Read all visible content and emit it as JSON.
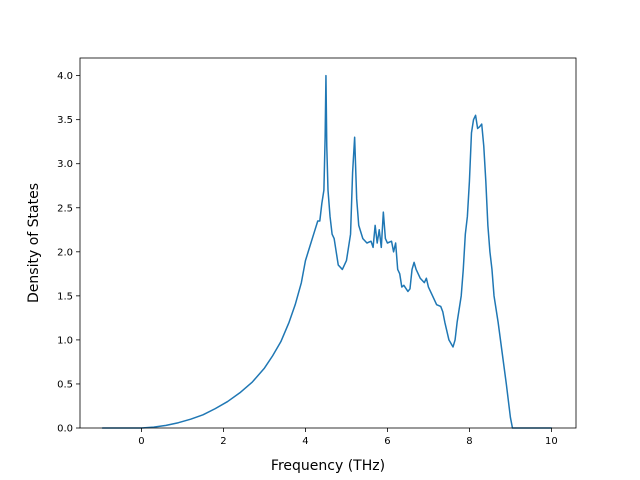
{
  "chart_data": {
    "type": "line",
    "title": "",
    "xlabel": "Frequency (THz)",
    "ylabel": "Density of States",
    "xlim": [
      -1.5,
      10.6
    ],
    "ylim": [
      0.0,
      4.2
    ],
    "x_ticks": [
      0,
      2,
      4,
      6,
      8,
      10
    ],
    "x_tick_labels": [
      "0",
      "2",
      "4",
      "6",
      "8",
      "10"
    ],
    "y_ticks": [
      0.0,
      0.5,
      1.0,
      1.5,
      2.0,
      2.5,
      3.0,
      3.5,
      4.0
    ],
    "y_tick_labels": [
      "0.0",
      "0.5",
      "1.0",
      "1.5",
      "2.0",
      "2.5",
      "3.0",
      "3.5",
      "4.0"
    ],
    "grid": false,
    "line_color": "#1f77b4",
    "series": [
      {
        "x": [
          -0.95,
          -0.5,
          0.0,
          0.3,
          0.6,
          0.9,
          1.2,
          1.5,
          1.8,
          2.1,
          2.4,
          2.7,
          3.0,
          3.2,
          3.4,
          3.6,
          3.75,
          3.9,
          4.0,
          4.1,
          4.2,
          4.3,
          4.35,
          4.4,
          4.45,
          4.48,
          4.5,
          4.52,
          4.55,
          4.6,
          4.65,
          4.7,
          4.75,
          4.8,
          4.9,
          5.0,
          5.1,
          5.15,
          5.2,
          5.25,
          5.3,
          5.4,
          5.5,
          5.6,
          5.65,
          5.7,
          5.75,
          5.8,
          5.85,
          5.9,
          5.95,
          6.0,
          6.1,
          6.15,
          6.2,
          6.25,
          6.3,
          6.35,
          6.4,
          6.5,
          6.55,
          6.6,
          6.65,
          6.7,
          6.8,
          6.9,
          6.95,
          7.0,
          7.1,
          7.2,
          7.3,
          7.35,
          7.4,
          7.5,
          7.6,
          7.65,
          7.7,
          7.8,
          7.85,
          7.9,
          7.95,
          8.0,
          8.05,
          8.1,
          8.15,
          8.2,
          8.25,
          8.3,
          8.35,
          8.4,
          8.45,
          8.5,
          8.55,
          8.6,
          8.7,
          8.8,
          8.9,
          9.0,
          9.05,
          9.1,
          9.15,
          9.3,
          9.6,
          10.0
        ],
        "values": [
          0.0,
          0.0,
          0.0,
          0.01,
          0.03,
          0.06,
          0.1,
          0.15,
          0.22,
          0.3,
          0.4,
          0.52,
          0.68,
          0.82,
          0.98,
          1.2,
          1.4,
          1.65,
          1.9,
          2.05,
          2.2,
          2.35,
          2.35,
          2.55,
          2.7,
          3.3,
          4.0,
          3.2,
          2.7,
          2.4,
          2.2,
          2.15,
          2.0,
          1.85,
          1.8,
          1.9,
          2.2,
          2.9,
          3.3,
          2.6,
          2.3,
          2.15,
          2.1,
          2.12,
          2.05,
          2.3,
          2.1,
          2.25,
          2.05,
          2.45,
          2.15,
          2.1,
          2.12,
          2.0,
          2.1,
          1.8,
          1.75,
          1.6,
          1.62,
          1.55,
          1.58,
          1.8,
          1.88,
          1.8,
          1.7,
          1.65,
          1.7,
          1.6,
          1.5,
          1.4,
          1.38,
          1.32,
          1.2,
          1.0,
          0.92,
          1.0,
          1.2,
          1.5,
          1.8,
          2.2,
          2.4,
          2.8,
          3.35,
          3.5,
          3.55,
          3.4,
          3.42,
          3.45,
          3.2,
          2.8,
          2.3,
          2.0,
          1.8,
          1.5,
          1.2,
          0.85,
          0.5,
          0.12,
          0.0,
          0.0,
          0.0,
          0.0,
          0.0,
          0.0
        ]
      }
    ]
  }
}
